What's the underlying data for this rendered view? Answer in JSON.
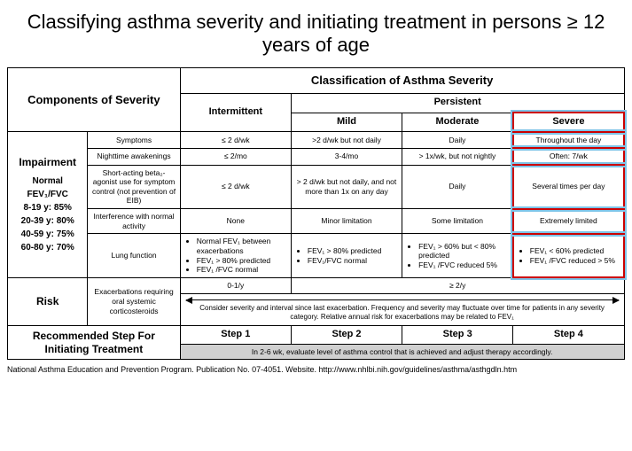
{
  "title": "Classifying asthma severity and initiating treatment in persons ≥ 12 years of age",
  "header": {
    "components": "Components of Severity",
    "classification": "Classification of Asthma Severity",
    "intermittent": "Intermittent",
    "persistent": "Persistent",
    "mild": "Mild",
    "moderate": "Moderate",
    "severe": "Severe"
  },
  "impairment": {
    "label": "Impairment",
    "normal_label": "Normal FEV₁/FVC",
    "age_ranges": "8-19 y: 85%\n20-39 y: 80%\n40-59 y: 75%\n60-80 y: 70%",
    "rows": {
      "symptoms": {
        "label": "Symptoms",
        "intermittent": "≤ 2 d/wk",
        "mild": ">2 d/wk but not daily",
        "moderate": "Daily",
        "severe": "Throughout the day"
      },
      "nighttime": {
        "label": "Nighttime awakenings",
        "intermittent": "≤ 2/mo",
        "mild": "3-4/mo",
        "moderate": "> 1x/wk, but not nightly",
        "severe": "Often: 7/wk"
      },
      "saba": {
        "label": "Short-acting beta₂-agonist use for symptom control (not prevention of EIB)",
        "intermittent": "≤ 2 d/wk",
        "mild": "> 2 d/wk but not daily, and not more than 1x on any day",
        "moderate": "Daily",
        "severe": "Several times per day"
      },
      "interference": {
        "label": "Interference with normal activity",
        "intermittent": "None",
        "mild": "Minor limitation",
        "moderate": "Some limitation",
        "severe": "Extremely limited"
      },
      "lung": {
        "label": "Lung function",
        "intermittent": "Normal FEV₁ between exacerbations|FEV₁ > 80% predicted|FEV₁ /FVC normal",
        "mild": "FEV₁ > 80% predicted|FEV₁/FVC normal",
        "moderate": "FEV₁ > 60% but < 80% predicted|FEV₁ /FVC reduced 5%",
        "severe": "FEV₁ < 60% predicted|FEV₁ \\/FVC reduced > 5%"
      }
    }
  },
  "risk": {
    "label": "Risk",
    "sublabel": "Exacerbations requiring oral systemic corticosteroids",
    "intermittent": "0-1/y",
    "persistent": "≥ 2/y",
    "note": "Consider severity and interval since last exacerbation. Frequency and severity may fluctuate over time for patients in any severity category. Relative annual risk for exacerbations may be related to FEV₁"
  },
  "recommended": {
    "label": "Recommended Step For Initiating Treatment",
    "steps": {
      "s1": "Step 1",
      "s2": "Step 2",
      "s3": "Step 3",
      "s4": "Step 4"
    },
    "note": "In 2-6 wk, evaluate level of asthma control that is achieved and adjust therapy accordingly."
  },
  "source": "National Asthma Education and Prevention Program. Publication No. 07-4051. Website. http://www.nhlbi.nih.gov/guidelines/asthma/asthgdln.htm"
}
